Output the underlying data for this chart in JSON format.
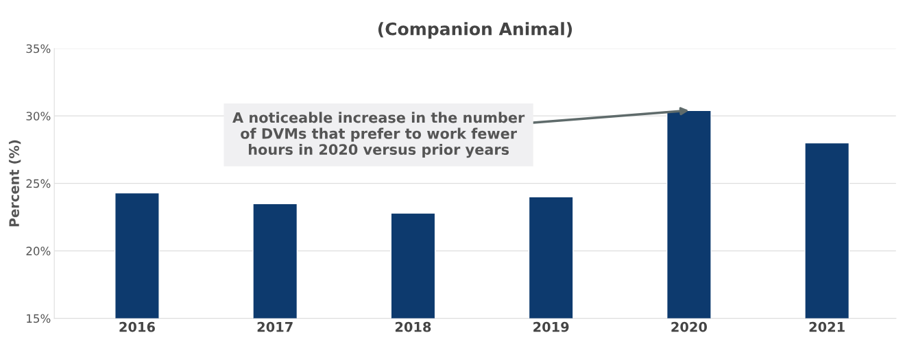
{
  "chart_data": {
    "type": "bar",
    "title": "(Companion Animal)",
    "ylabel": "Percent (%)",
    "categories": [
      "2016",
      "2017",
      "2018",
      "2019",
      "2020",
      "2021"
    ],
    "values": [
      24.3,
      23.5,
      22.8,
      24.0,
      30.4,
      28.0
    ],
    "color": "#0d3a6e",
    "ylim": [
      15,
      35
    ],
    "yticks": [
      {
        "value": 15,
        "label": "15%"
      },
      {
        "value": 20,
        "label": "20%"
      },
      {
        "value": 25,
        "label": "25%"
      },
      {
        "value": 30,
        "label": "30%"
      },
      {
        "value": 35,
        "label": "35%"
      }
    ],
    "grid": "y",
    "annotations": [
      {
        "text": "A noticeable increase in the number\nof DVMs that prefer to work fewer\nhours in 2020 versus prior years",
        "x": "2020",
        "y": 30.4
      }
    ]
  }
}
